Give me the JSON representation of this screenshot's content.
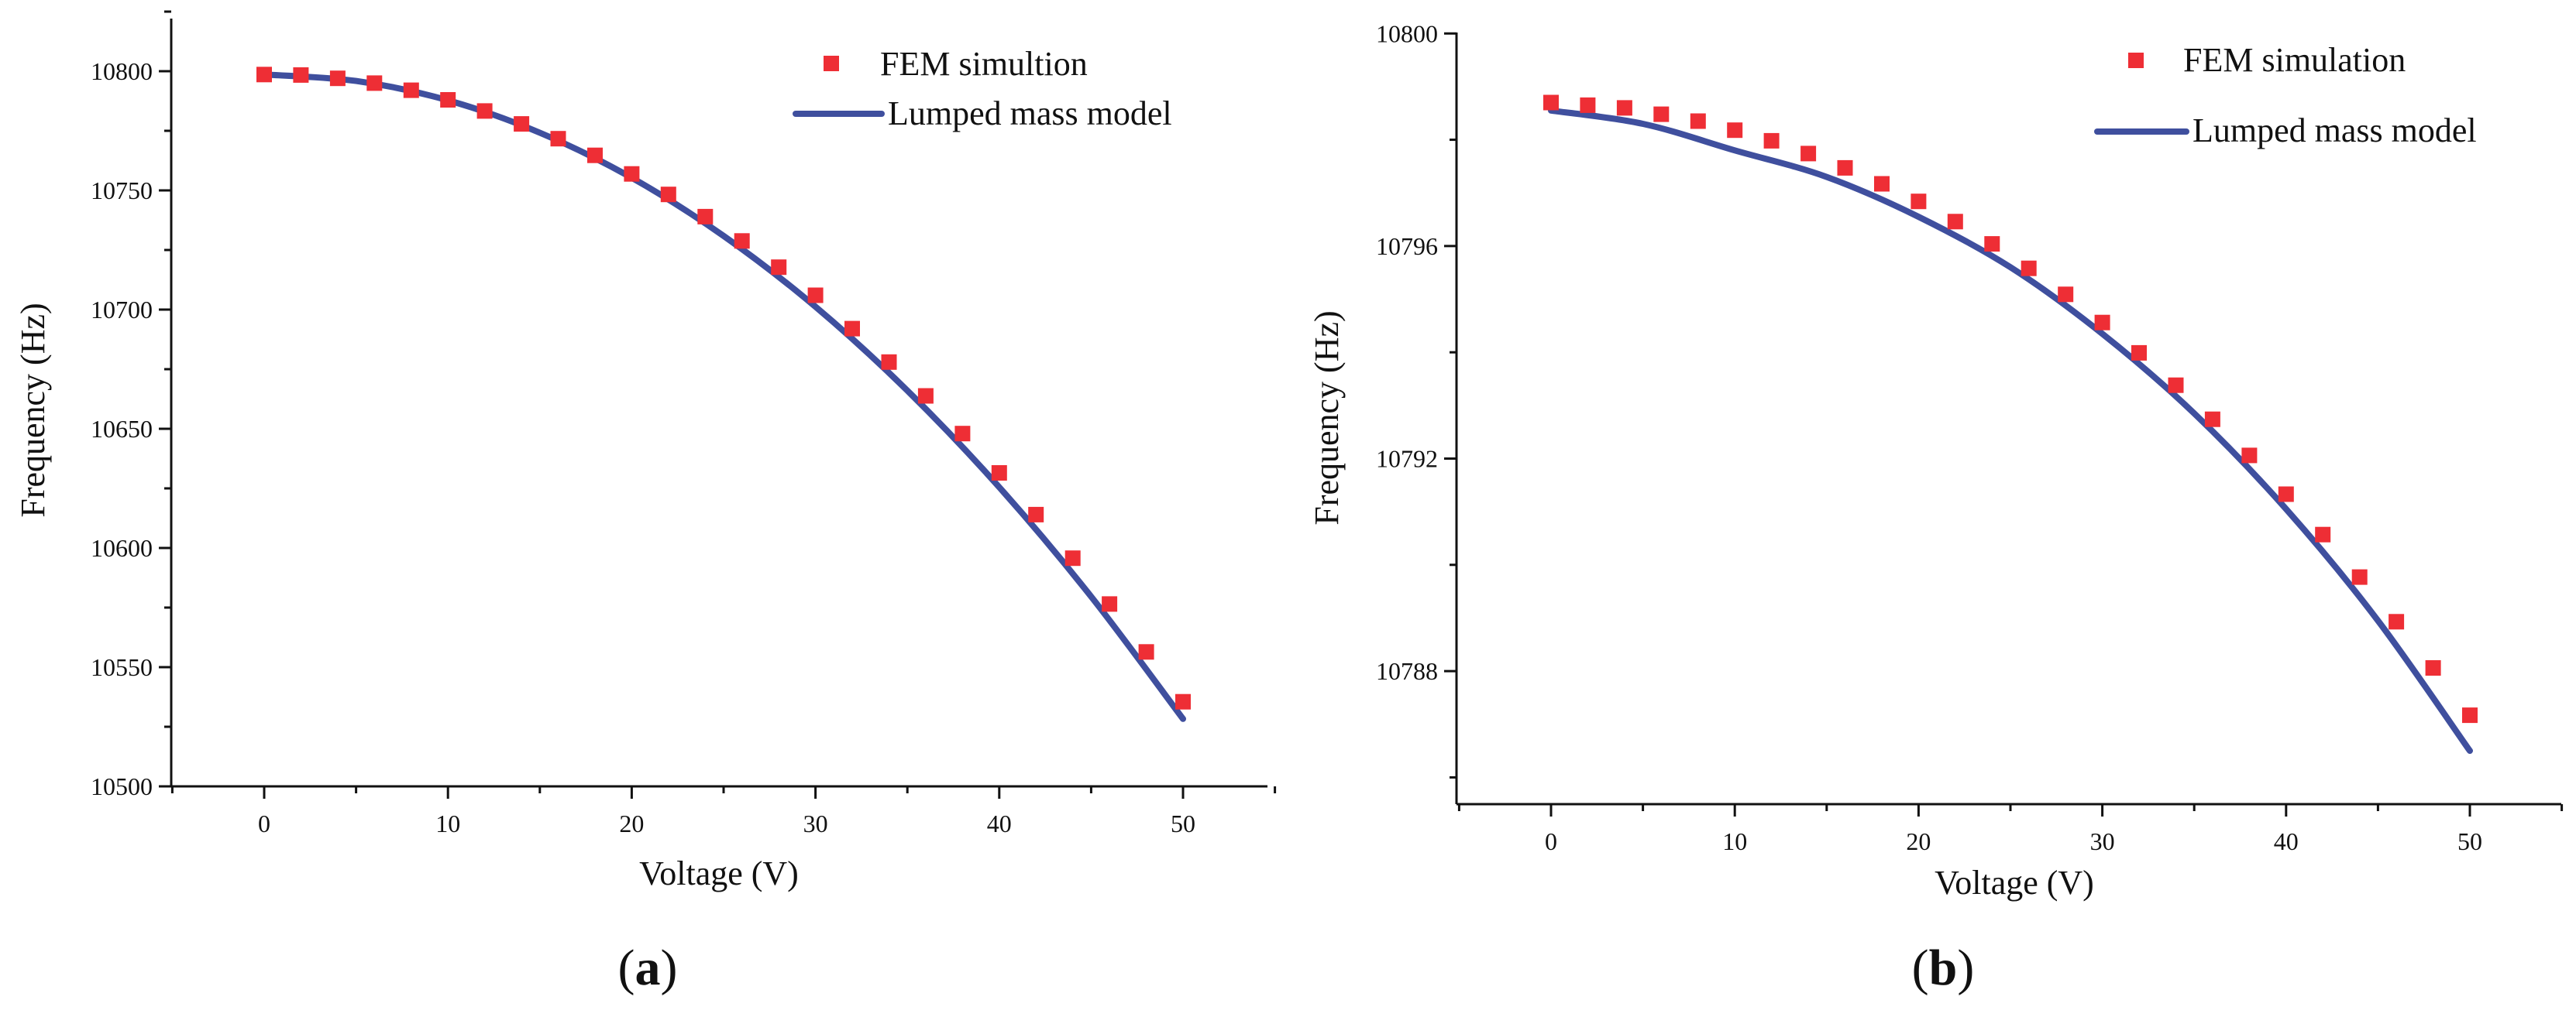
{
  "figure": {
    "panel_a_label": {
      "open": "(",
      "letter": "a",
      "close": ")"
    },
    "panel_b_label": {
      "open": "(",
      "letter": "b",
      "close": ")"
    }
  },
  "colors": {
    "fem_marker": "#ee2e35",
    "model_line": "#3f4f9e"
  },
  "chart_data": [
    {
      "type": "scatter",
      "panel": "a",
      "title": "",
      "xlabel": "Voltage (V)",
      "ylabel": "Frequency (Hz)",
      "xlim": [
        -5,
        55
      ],
      "ylim": [
        10500,
        10830
      ],
      "x_ticks": [
        0,
        10,
        20,
        30,
        40,
        50
      ],
      "y_ticks": [
        10500,
        10550,
        10600,
        10650,
        10700,
        10750,
        10800
      ],
      "legend_position": "top-right",
      "series": [
        {
          "name": "FEM simultion",
          "kind": "markers",
          "x": [
            0,
            2,
            4,
            6,
            8,
            10,
            12,
            14,
            16,
            18,
            20,
            22,
            24,
            26,
            28,
            30,
            32,
            34,
            36,
            38,
            40,
            42,
            44,
            46,
            48,
            50
          ],
          "values": [
            10798.6,
            10798.4,
            10797,
            10795,
            10792,
            10788,
            10783.3,
            10777.9,
            10771.7,
            10764.7,
            10756.9,
            10748.3,
            10739,
            10728.8,
            10717.8,
            10706,
            10692,
            10678,
            10663.8,
            10648,
            10631.5,
            10614,
            10595.7,
            10576.5,
            10556.4,
            10535.5
          ]
        },
        {
          "name": "Lumped mass model",
          "kind": "line",
          "x": [
            0,
            5,
            10,
            15,
            20,
            25,
            30,
            35,
            40,
            45,
            50
          ],
          "values": [
            10798.6,
            10795.9,
            10787.8,
            10774.2,
            10755.3,
            10730.9,
            10701.2,
            10666,
            10625.5,
            10579.6,
            10528.3
          ]
        }
      ]
    },
    {
      "type": "scatter",
      "panel": "b",
      "title": "",
      "xlabel": "Voltage (V)",
      "ylabel": "Frequency (Hz)",
      "xlim": [
        -5,
        55
      ],
      "ylim": [
        10785.5,
        10800
      ],
      "x_ticks": [
        0,
        10,
        20,
        30,
        40,
        50
      ],
      "y_ticks": [
        10788,
        10792,
        10796,
        10800
      ],
      "legend_position": "top-right",
      "series": [
        {
          "name": "FEM simulation",
          "kind": "markers",
          "x": [
            0,
            2,
            4,
            6,
            8,
            10,
            12,
            14,
            16,
            18,
            20,
            22,
            24,
            26,
            28,
            30,
            32,
            34,
            36,
            38,
            40,
            42,
            44,
            46,
            48,
            50
          ],
          "values": [
            10798.7,
            10798.65,
            10798.6,
            10798.48,
            10798.35,
            10798.18,
            10797.98,
            10797.74,
            10797.47,
            10797.17,
            10796.84,
            10796.46,
            10796.04,
            10795.58,
            10795.09,
            10794.56,
            10793.99,
            10793.38,
            10792.74,
            10792.06,
            10791.33,
            10790.57,
            10789.77,
            10788.93,
            10788.06,
            10787.17
          ]
        },
        {
          "name": "Lumped mass model",
          "kind": "line",
          "x": [
            0,
            5,
            10,
            15,
            20,
            25,
            30,
            35,
            40,
            45,
            50
          ],
          "values": [
            10798.55,
            10798.3,
            10797.8,
            10797.3,
            10796.55,
            10795.6,
            10794.35,
            10792.85,
            10791.05,
            10788.95,
            10786.5
          ]
        }
      ]
    }
  ]
}
